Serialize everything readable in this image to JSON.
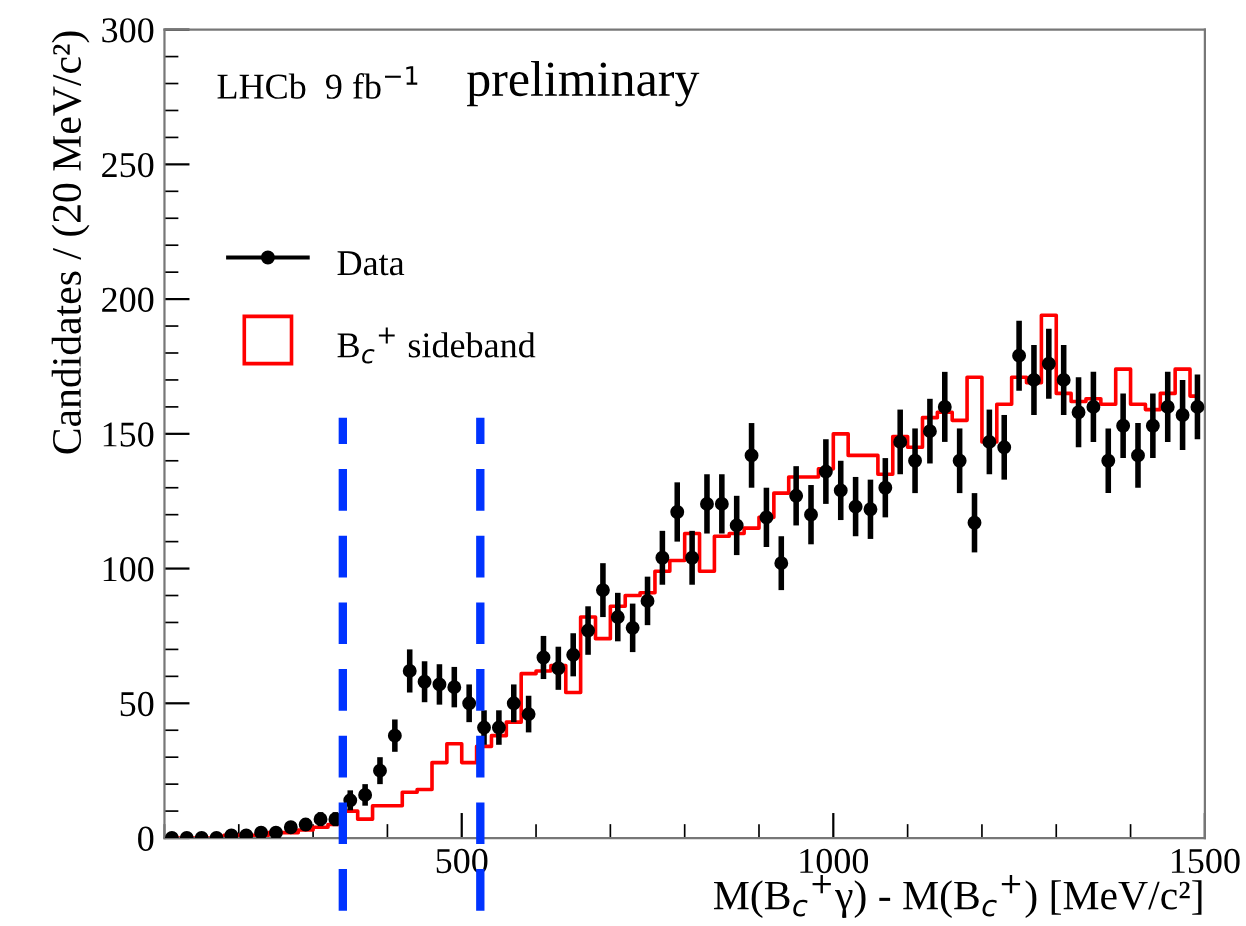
{
  "chart_data": {
    "type": "scatter",
    "xlabel": "M(B$_{c}$$^{+}$γ) - M(B$_{c}$$^{+}$) [MeV/c²]",
    "ylabel": "Candidates / (20 MeV/c²)",
    "annotations": [
      "LHCb  9 fb$^{−1}$",
      "preliminary"
    ],
    "x": [
      110,
      130,
      150,
      170,
      190,
      210,
      230,
      250,
      270,
      290,
      310,
      330,
      350,
      370,
      390,
      410,
      430,
      450,
      470,
      490,
      510,
      530,
      550,
      570,
      590,
      610,
      630,
      650,
      670,
      690,
      710,
      730,
      750,
      770,
      790,
      810,
      830,
      850,
      870,
      890,
      910,
      930,
      950,
      970,
      990,
      1010,
      1030,
      1050,
      1070,
      1090,
      1110,
      1130,
      1150,
      1170,
      1190,
      1210,
      1230,
      1250,
      1270,
      1290,
      1310,
      1330,
      1350,
      1370,
      1390,
      1410,
      1430,
      1450,
      1470,
      1490
    ],
    "series": [
      {
        "name": "Data",
        "color": "#000000",
        "marker": "circle",
        "values": [
          0,
          0,
          0,
          0,
          1,
          1,
          2,
          2,
          4,
          5,
          7,
          7,
          14,
          16,
          25,
          38,
          62,
          58,
          57,
          56,
          50,
          41,
          41,
          50,
          46,
          67,
          63,
          68,
          77,
          92,
          82,
          78,
          88,
          104,
          121,
          104,
          124,
          124,
          116,
          142,
          119,
          102,
          127,
          120,
          136,
          129,
          123,
          122,
          130,
          147,
          140,
          151,
          160,
          140,
          117,
          147,
          145,
          179,
          170,
          176,
          170,
          158,
          160,
          140,
          153,
          142,
          153,
          160,
          157,
          160
        ],
        "errors": [
          0,
          0,
          0,
          0,
          1,
          1,
          1.4,
          1.4,
          2,
          2.2,
          2.6,
          2.6,
          3.7,
          4,
          5,
          6,
          8,
          7.6,
          7.5,
          7.5,
          7,
          6.4,
          6.4,
          7,
          6.8,
          8,
          8,
          8,
          9,
          10,
          9,
          9,
          9,
          10,
          11,
          10,
          11,
          11,
          11,
          12,
          11,
          10,
          11,
          11,
          12,
          11,
          11,
          11,
          11,
          12,
          12,
          12,
          13,
          12,
          11,
          12,
          12,
          13,
          13,
          13,
          13,
          13,
          13,
          12,
          12,
          12,
          12,
          13,
          13,
          12
        ]
      },
      {
        "name": "B$_{c}$$^{+}$ sideband",
        "type": "step",
        "color": "#ff0000",
        "values": [
          0,
          0,
          0,
          0,
          1,
          1,
          1,
          2,
          2,
          3,
          4,
          5,
          10,
          7,
          12,
          12,
          17,
          18,
          28,
          35,
          28,
          34,
          38,
          43,
          61,
          62,
          64,
          54,
          82,
          74,
          86,
          90,
          91,
          99,
          103,
          113,
          99,
          112,
          113,
          115,
          119,
          128,
          134,
          134,
          137,
          150,
          142,
          142,
          135,
          149,
          145,
          156,
          158,
          155,
          171,
          147,
          161,
          171,
          169,
          194,
          165,
          162,
          163,
          161,
          174,
          161,
          159,
          165,
          174,
          164
        ]
      }
    ],
    "ref_lines": [
      {
        "axis": "x",
        "value": 340,
        "color": "#0033ff",
        "line_style": "dashed"
      },
      {
        "axis": "x",
        "value": 525,
        "color": "#0033ff",
        "line_style": "dashed"
      }
    ],
    "xlim": [
      100,
      1500
    ],
    "xticks": [
      {
        "value": 500,
        "label": "500"
      },
      {
        "value": 1000,
        "label": "1000"
      },
      {
        "value": 1500,
        "label": "1500"
      }
    ],
    "ylim": [
      0,
      300
    ],
    "yticks": [
      0,
      50,
      100,
      150,
      200,
      250,
      300
    ],
    "legend": "top left",
    "grid": false
  }
}
